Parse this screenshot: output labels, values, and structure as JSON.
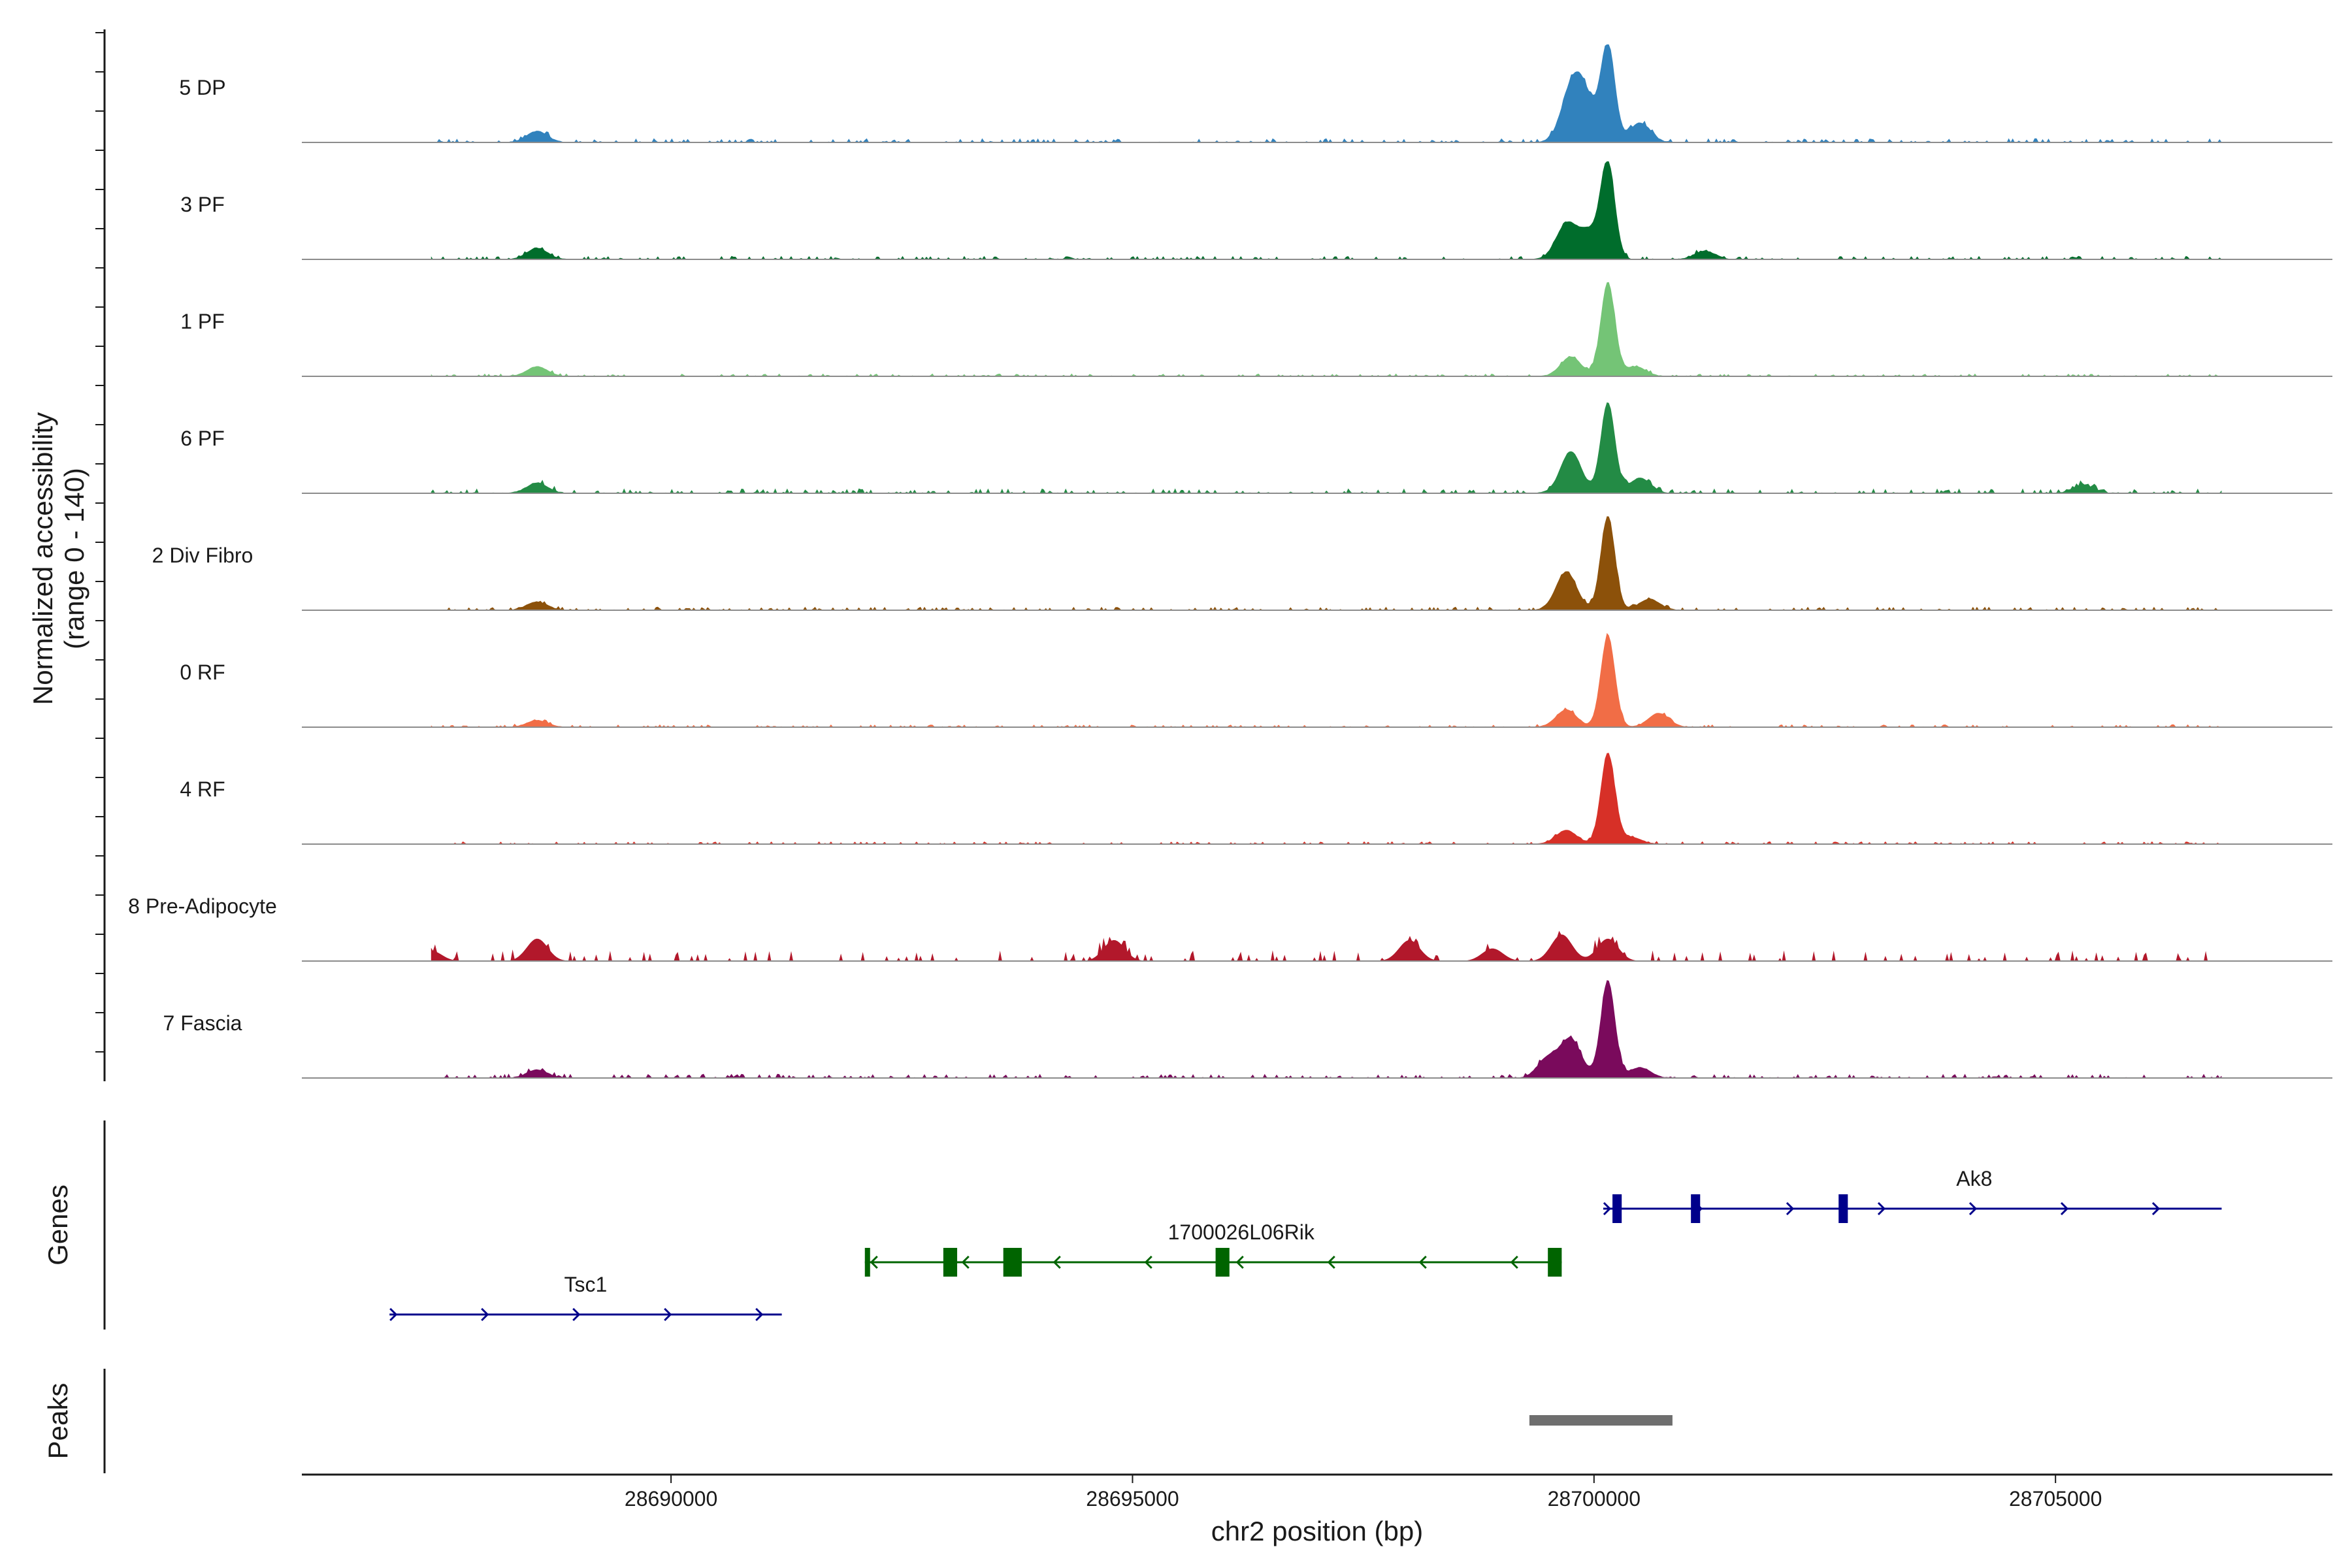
{
  "chart_data": {
    "type": "area",
    "title": "",
    "xlabel": "chr2 position (bp)",
    "ylabel": "Normalized accessibility",
    "ylabel_range": "(range 0 - 140)",
    "xlim": [
      28686000,
      28708000
    ],
    "ylim": [
      0,
      140
    ],
    "x_ticks": [
      28690000,
      28695000,
      28700000,
      28705000
    ],
    "x_tick_labels": [
      "28690000",
      "28695000",
      "28700000",
      "28705000"
    ],
    "tracks": [
      {
        "name": "5 DP",
        "color": "#3182bd",
        "peaks": [
          [
            28700150,
            140
          ],
          [
            28699750,
            68
          ],
          [
            28699900,
            58
          ],
          [
            28700500,
            28
          ],
          [
            28688550,
            16
          ]
        ],
        "noise": 6,
        "spiky": false
      },
      {
        "name": "3 PF",
        "color": "#006d2c",
        "peaks": [
          [
            28700150,
            135
          ],
          [
            28699700,
            50
          ],
          [
            28699950,
            38
          ],
          [
            28701200,
            12
          ],
          [
            28688550,
            16
          ]
        ],
        "noise": 5,
        "spiky": false
      },
      {
        "name": "1 PF",
        "color": "#74c476",
        "peaks": [
          [
            28700150,
            135
          ],
          [
            28699750,
            28
          ],
          [
            28700450,
            14
          ],
          [
            28688550,
            14
          ]
        ],
        "noise": 4,
        "spiky": false
      },
      {
        "name": "6 PF",
        "color": "#238b45",
        "peaks": [
          [
            28700150,
            130
          ],
          [
            28699750,
            60
          ],
          [
            28700500,
            22
          ],
          [
            28688550,
            15
          ],
          [
            28705300,
            12
          ]
        ],
        "noise": 7,
        "spiky": false
      },
      {
        "name": "2 Div Fibro",
        "color": "#8c510a",
        "peaks": [
          [
            28700150,
            135
          ],
          [
            28699700,
            55
          ],
          [
            28700600,
            16
          ],
          [
            28688550,
            12
          ]
        ],
        "noise": 5,
        "spiky": false
      },
      {
        "name": "0 RF",
        "color": "#f16d46",
        "peaks": [
          [
            28700150,
            132
          ],
          [
            28699700,
            25
          ],
          [
            28700700,
            20
          ],
          [
            28688550,
            10
          ]
        ],
        "noise": 4,
        "spiky": false
      },
      {
        "name": "4 RF",
        "color": "#d73027",
        "peaks": [
          [
            28700150,
            130
          ],
          [
            28699700,
            20
          ],
          [
            28700400,
            10
          ]
        ],
        "noise": 4,
        "spiky": false
      },
      {
        "name": "8 Pre-Adipocyte",
        "color": "#b2182b",
        "peaks": [
          [
            28700150,
            32
          ],
          [
            28699650,
            38
          ],
          [
            28688550,
            32
          ],
          [
            28694800,
            30
          ],
          [
            28698000,
            30
          ],
          [
            28687400,
            15
          ],
          [
            28698900,
            18
          ]
        ],
        "noise": 12,
        "spiky": true
      },
      {
        "name": "7 Fascia",
        "color": "#7a0a5c",
        "peaks": [
          [
            28700150,
            140
          ],
          [
            28699750,
            55
          ],
          [
            28699500,
            28
          ],
          [
            28700500,
            15
          ],
          [
            28688550,
            12
          ]
        ],
        "noise": 6,
        "spiky": false
      }
    ],
    "genes_label": "Genes",
    "peaks_label": "Peaks",
    "genes": [
      {
        "name": "Tsc1",
        "start": 28686950,
        "end": 28691200,
        "strand": "+",
        "color": "#00008b",
        "exons": []
      },
      {
        "name": "1700026L06Rik",
        "start": 28692100,
        "end": 28699650,
        "strand": "-",
        "color": "#006400",
        "exons": [
          [
            28692100,
            28692150
          ],
          [
            28692950,
            28693100
          ],
          [
            28693600,
            28693800
          ],
          [
            28695900,
            28696050
          ],
          [
            28699500,
            28699650
          ]
        ]
      },
      {
        "name": "Ak8",
        "start": 28700100,
        "end": 28706800,
        "strand": "+",
        "color": "#00008b",
        "exons": [
          [
            28700200,
            28700300
          ],
          [
            28701050,
            28701150
          ],
          [
            28702650,
            28702750
          ]
        ]
      }
    ],
    "peak_regions": [
      [
        28699300,
        28700850
      ]
    ]
  }
}
